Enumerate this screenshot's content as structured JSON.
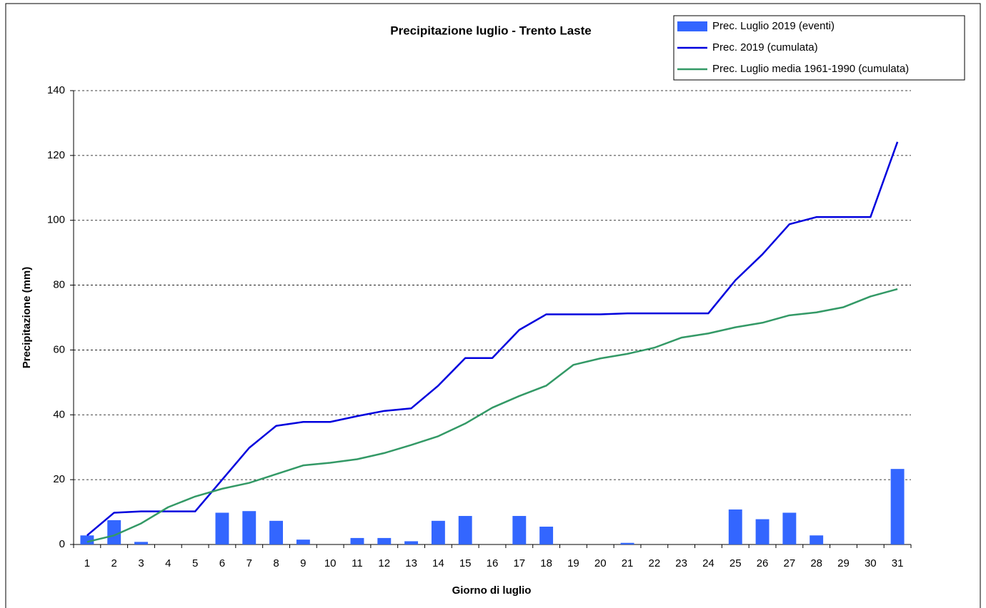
{
  "chart_data": {
    "type": "bar-line",
    "title": "Precipitazione luglio - Trento Laste",
    "x_label": "Giorno di luglio",
    "y_label": "Precipitazione (mm)",
    "categories": [
      "1",
      "2",
      "3",
      "4",
      "5",
      "6",
      "7",
      "8",
      "9",
      "10",
      "11",
      "12",
      "13",
      "14",
      "15",
      "16",
      "17",
      "18",
      "19",
      "20",
      "21",
      "22",
      "23",
      "24",
      "25",
      "26",
      "27",
      "28",
      "29",
      "30",
      "31"
    ],
    "series": [
      {
        "name": "Prec. Luglio 2019 (eventi)",
        "type": "bar",
        "color": "#3366ff",
        "values": [
          2.8,
          7.5,
          0.8,
          0,
          0,
          9.8,
          10.3,
          7.3,
          1.5,
          0,
          2.0,
          2.0,
          1.0,
          7.3,
          8.8,
          0,
          8.8,
          5.5,
          0,
          0,
          0.5,
          0,
          0,
          0,
          10.8,
          7.8,
          9.8,
          2.8,
          0,
          0,
          23.3
        ]
      },
      {
        "name": "Prec. 2019 (cumulata)",
        "type": "line",
        "color": "#0000dd",
        "values": [
          2.8,
          9.8,
          10.2,
          10.2,
          10.2,
          20,
          29.8,
          36.6,
          37.8,
          37.8,
          39.6,
          41.2,
          42,
          49,
          57.5,
          57.5,
          66.2,
          71,
          71,
          71,
          71.3,
          71.3,
          71.3,
          71.3,
          81.5,
          89.5,
          98.8,
          101,
          101,
          101,
          124.2
        ]
      },
      {
        "name": "Prec. Luglio media 1961-1990 (cumulata)",
        "type": "line",
        "color": "#339966",
        "values": [
          0.8,
          2.8,
          6.5,
          11.5,
          14.8,
          17.2,
          19,
          21.7,
          24.4,
          25.2,
          26.3,
          28.2,
          30.7,
          33.4,
          37.3,
          42.2,
          45.8,
          49,
          55.4,
          57.4,
          58.8,
          60.7,
          63.8,
          65.1,
          67,
          68.4,
          70.7,
          71.6,
          73.2,
          76.5,
          78.8
        ]
      }
    ],
    "ylim": [
      0,
      140
    ],
    "yticks": [
      0,
      20,
      40,
      60,
      80,
      100,
      120,
      140
    ],
    "grid": true,
    "legend": "top-right"
  }
}
